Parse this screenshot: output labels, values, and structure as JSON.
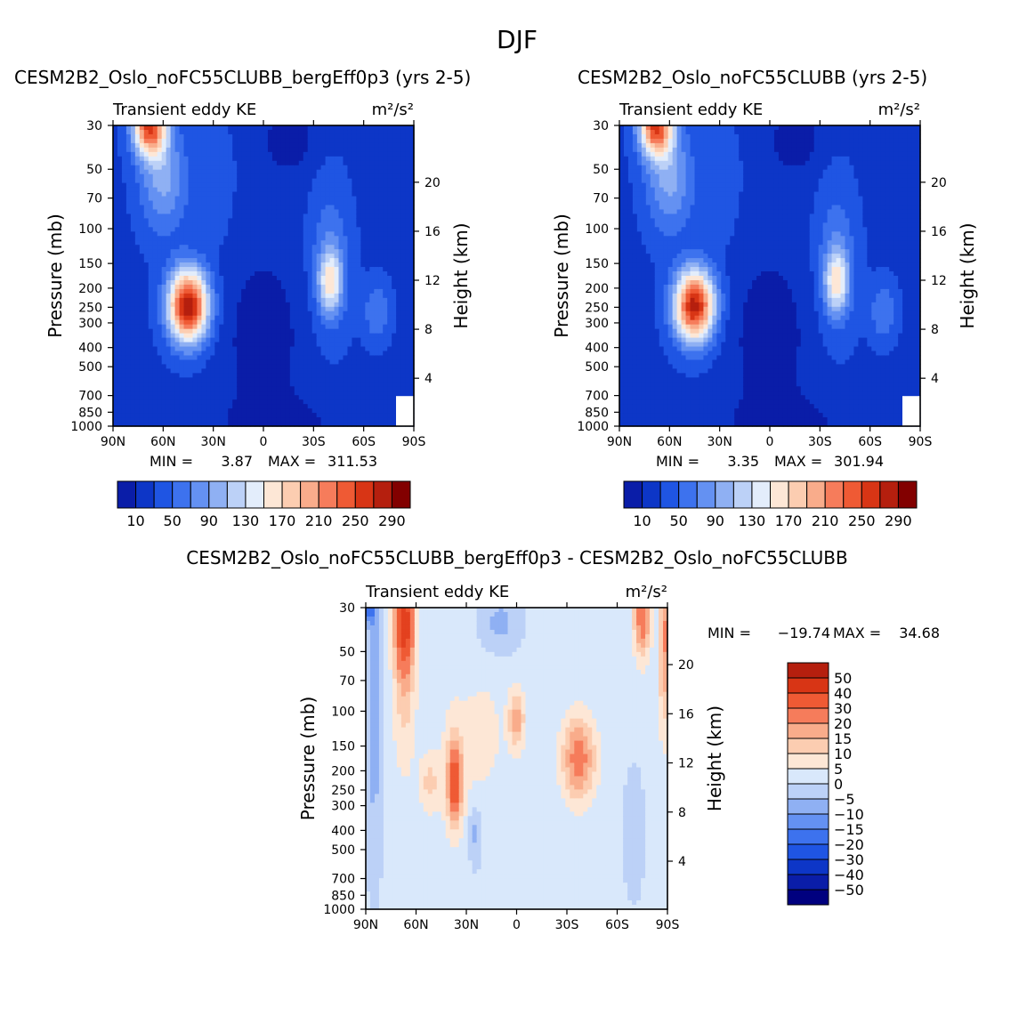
{
  "page": {
    "title": "DJF"
  },
  "chart_data": [
    {
      "type": "heatmap",
      "title": "CESM2B2_Oslo_noFC55CLUBB_bergEff0p3 (yrs 2-5)",
      "field": "Transient eddy KE",
      "units": "m²/s²",
      "ylabel": "Pressure (mb)",
      "ylabel2": "Height (km)",
      "x_ticks": [
        "90N",
        "60N",
        "30N",
        "0",
        "30S",
        "60S",
        "90S"
      ],
      "y_ticks": [
        "30",
        "50",
        "70",
        "100",
        "150",
        "200",
        "250",
        "300",
        "400",
        "500",
        "700",
        "850",
        "1000"
      ],
      "y2_ticks": [
        "20",
        "16",
        "12",
        "8",
        "4"
      ],
      "min_label": "MIN =",
      "min_value": "3.87",
      "max_label": "MAX =",
      "max_value": "311.53",
      "peak": {
        "lat": "45N",
        "pressure_mb": 280,
        "value": 311.53
      },
      "colorbar_levels": [
        "10",
        "50",
        "90",
        "130",
        "170",
        "210",
        "250",
        "290"
      ]
    },
    {
      "type": "heatmap",
      "title": "CESM2B2_Oslo_noFC55CLUBB (yrs 2-5)",
      "field": "Transient eddy KE",
      "units": "m²/s²",
      "ylabel": "Pressure (mb)",
      "ylabel2": "Height (km)",
      "x_ticks": [
        "90N",
        "60N",
        "30N",
        "0",
        "30S",
        "60S",
        "90S"
      ],
      "y_ticks": [
        "30",
        "50",
        "70",
        "100",
        "150",
        "200",
        "250",
        "300",
        "400",
        "500",
        "700",
        "850",
        "1000"
      ],
      "y2_ticks": [
        "20",
        "16",
        "12",
        "8",
        "4"
      ],
      "min_label": "MIN =",
      "min_value": "3.35",
      "max_label": "MAX =",
      "max_value": "301.94",
      "peak": {
        "lat": "45N",
        "pressure_mb": 280,
        "value": 301.94
      },
      "colorbar_levels": [
        "10",
        "50",
        "90",
        "130",
        "170",
        "210",
        "250",
        "290"
      ]
    },
    {
      "type": "heatmap",
      "title": "CESM2B2_Oslo_noFC55CLUBB_bergEff0p3 - CESM2B2_Oslo_noFC55CLUBB",
      "field": "Transient eddy KE",
      "units": "m²/s²",
      "ylabel": "Pressure (mb)",
      "ylabel2": "Height (km)",
      "x_ticks": [
        "90N",
        "60N",
        "30N",
        "0",
        "30S",
        "60S",
        "90S"
      ],
      "y_ticks": [
        "30",
        "50",
        "70",
        "100",
        "150",
        "200",
        "250",
        "300",
        "400",
        "500",
        "700",
        "850",
        "1000"
      ],
      "y2_ticks": [
        "20",
        "16",
        "12",
        "8",
        "4"
      ],
      "min_label": "MIN =",
      "min_value": "−19.74",
      "max_label": "MAX =",
      "max_value": "34.68",
      "colorbar_levels": [
        "50",
        "40",
        "30",
        "20",
        "15",
        "10",
        "5",
        "0",
        "−5",
        "−10",
        "−15",
        "−20",
        "−30",
        "−40",
        "−50"
      ]
    }
  ],
  "colors": {
    "seq": [
      "#00007f",
      "#0a1da8",
      "#0d36c7",
      "#1f55e3",
      "#3d72ee",
      "#6491f2",
      "#8fb0f3",
      "#bcd1f7",
      "#e3edfb",
      "#fde7d6",
      "#fccdb1",
      "#f9ac8b",
      "#f67c5b",
      "#ef5a34",
      "#d83515",
      "#b51f0e",
      "#820000"
    ],
    "diff": [
      "#00007f",
      "#0a1da8",
      "#0d36c7",
      "#1f55e3",
      "#3d72ee",
      "#6491f2",
      "#8fb0f3",
      "#bcd1f7",
      "#d9e8fb",
      "#fde7d6",
      "#fccdb1",
      "#f9ac8b",
      "#f67c5b",
      "#ef5a34",
      "#e3411f",
      "#d83515",
      "#b51f0e",
      "#820000"
    ]
  }
}
